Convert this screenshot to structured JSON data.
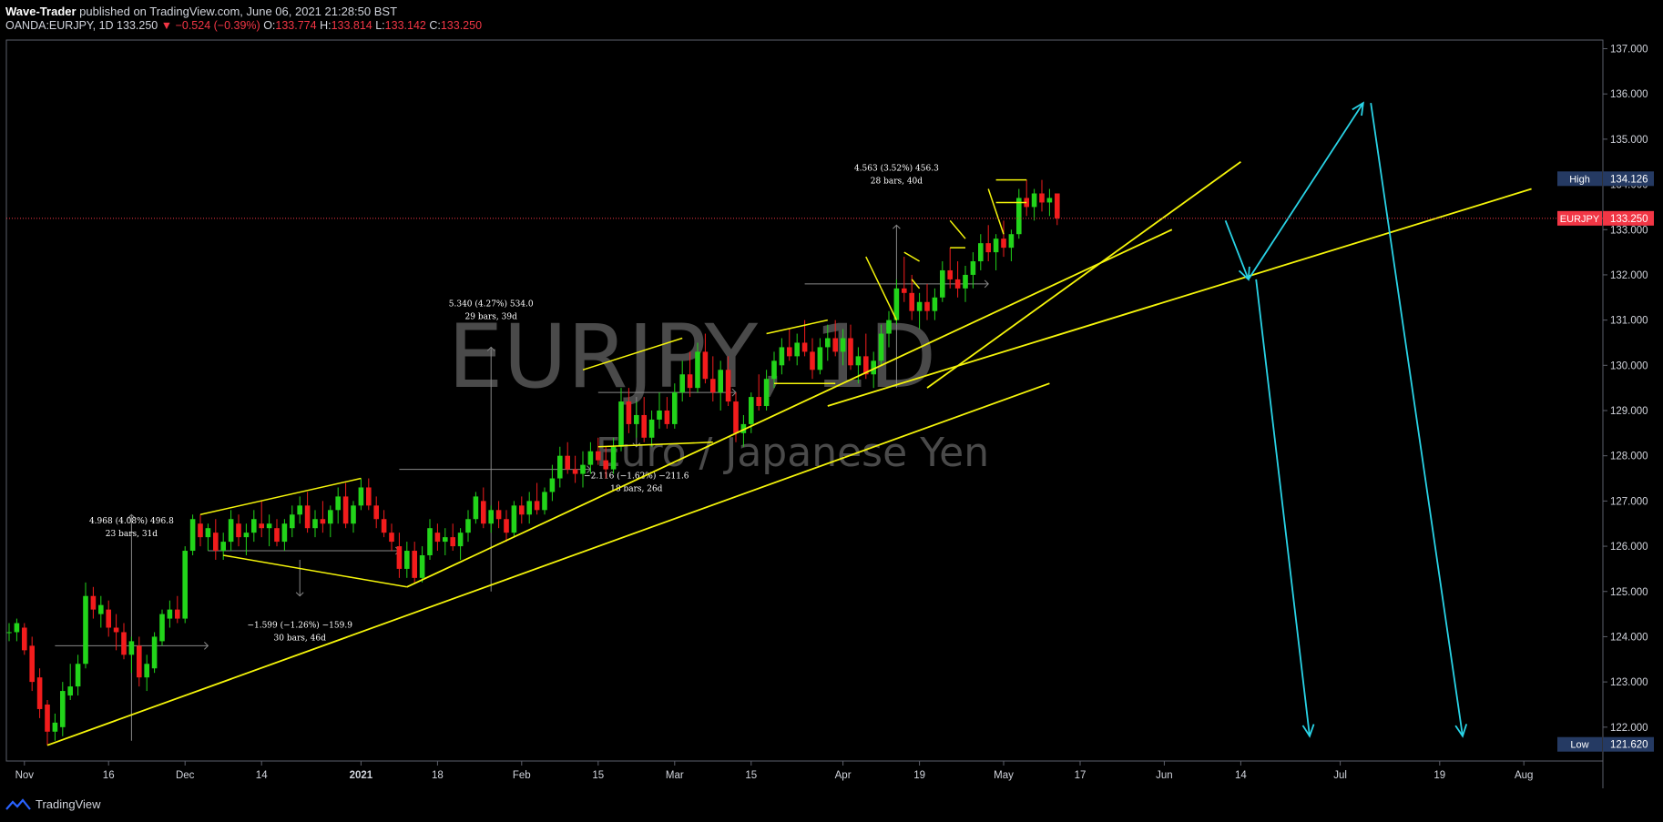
{
  "header": {
    "author": "Wave-Trader",
    "published": " published on TradingView.com, June 06, 2021 21:28:50 BST",
    "symbol": "OANDA:EURJPY, 1D",
    "last": "133.250",
    "change": "−0.524 (−0.39%)",
    "o_label": "O:",
    "o": "133.774",
    "h_label": "H:",
    "h": "133.814",
    "l_label": "L:",
    "l": "133.142",
    "c_label": "C:",
    "c": "133.250"
  },
  "footer": {
    "brand": "TradingView"
  },
  "watermark": {
    "title": "EURJPY, 1D",
    "subtitle": "Euro / Japanese Yen"
  },
  "colors": {
    "up": "#22d41a",
    "down": "#f21c1c",
    "trend": "#f5f50a",
    "projection": "#29d3e6",
    "high_badge": "#253a63",
    "price_badge": "#f23645"
  },
  "chart_data": {
    "type": "candlestick",
    "symbol": "EURJPY",
    "timeframe": "1D",
    "y_ticks": [
      122,
      123,
      124,
      125,
      126,
      127,
      128,
      129,
      130,
      131,
      132,
      133,
      134,
      135,
      136,
      137
    ],
    "y_tick_labels": [
      "122.000",
      "123.000",
      "124.000",
      "125.000",
      "126.000",
      "127.000",
      "128.000",
      "129.000",
      "130.000",
      "131.000",
      "132.000",
      "133.000",
      "134.000",
      "135.000",
      "136.000",
      "137.000"
    ],
    "ylim": [
      121.1,
      137.4
    ],
    "x_ticks": [
      {
        "label": "Nov",
        "bar": 2
      },
      {
        "label": "16",
        "bar": 13
      },
      {
        "label": "Dec",
        "bar": 23
      },
      {
        "label": "14",
        "bar": 33
      },
      {
        "label": "2021",
        "bar": 46
      },
      {
        "label": "18",
        "bar": 56
      },
      {
        "label": "Feb",
        "bar": 67
      },
      {
        "label": "15",
        "bar": 77
      },
      {
        "label": "Mar",
        "bar": 87
      },
      {
        "label": "15",
        "bar": 97
      },
      {
        "label": "Apr",
        "bar": 109
      },
      {
        "label": "19",
        "bar": 119
      },
      {
        "label": "May",
        "bar": 130
      },
      {
        "label": "17",
        "bar": 140
      },
      {
        "label": "Jun",
        "bar": 151
      },
      {
        "label": "14",
        "bar": 161
      },
      {
        "label": "Jul",
        "bar": 174
      },
      {
        "label": "19",
        "bar": 187
      },
      {
        "label": "Aug",
        "bar": 198
      }
    ],
    "high_marker": {
      "label": "High",
      "value": "134.126",
      "price": 134.126
    },
    "low_marker": {
      "label": "Low",
      "value": "121.620",
      "price": 121.62
    },
    "last_price": {
      "label": "EURJPY",
      "value": "133.250",
      "price": 133.25
    },
    "candles": [
      [
        124.1,
        124.3,
        123.9,
        124.1
      ],
      [
        124.1,
        124.4,
        123.9,
        124.3
      ],
      [
        124.2,
        124.3,
        123.6,
        123.7
      ],
      [
        123.8,
        124.0,
        122.8,
        123.0
      ],
      [
        123.1,
        123.3,
        122.2,
        122.4
      ],
      [
        122.5,
        122.6,
        121.6,
        121.9
      ],
      [
        121.9,
        122.3,
        121.7,
        122.1
      ],
      [
        122.0,
        123.0,
        121.8,
        122.8
      ],
      [
        122.7,
        123.4,
        122.6,
        122.9
      ],
      [
        122.9,
        123.6,
        122.7,
        123.4
      ],
      [
        123.4,
        125.2,
        123.3,
        124.9
      ],
      [
        124.9,
        125.1,
        124.4,
        124.6
      ],
      [
        124.5,
        124.9,
        124.2,
        124.7
      ],
      [
        124.6,
        124.8,
        124.0,
        124.2
      ],
      [
        124.2,
        124.5,
        123.7,
        124.1
      ],
      [
        124.1,
        124.3,
        123.5,
        123.6
      ],
      [
        123.6,
        124.0,
        123.2,
        123.9
      ],
      [
        123.8,
        124.0,
        122.9,
        123.1
      ],
      [
        123.1,
        123.6,
        122.8,
        123.4
      ],
      [
        123.3,
        124.1,
        123.2,
        124.0
      ],
      [
        123.9,
        124.6,
        123.8,
        124.5
      ],
      [
        124.4,
        124.8,
        124.2,
        124.6
      ],
      [
        124.6,
        124.9,
        124.3,
        124.4
      ],
      [
        124.4,
        126.0,
        124.3,
        125.9
      ],
      [
        125.9,
        126.7,
        125.8,
        126.6
      ],
      [
        126.5,
        126.7,
        126.0,
        126.2
      ],
      [
        126.2,
        126.5,
        125.9,
        126.4
      ],
      [
        126.3,
        126.6,
        125.7,
        125.9
      ],
      [
        125.9,
        126.3,
        125.7,
        126.1
      ],
      [
        126.1,
        126.8,
        125.9,
        126.6
      ],
      [
        126.5,
        126.7,
        126.0,
        126.2
      ],
      [
        126.2,
        126.5,
        125.8,
        126.3
      ],
      [
        126.3,
        126.8,
        126.1,
        126.6
      ],
      [
        126.5,
        127.0,
        126.2,
        126.4
      ],
      [
        126.4,
        126.7,
        126.0,
        126.5
      ],
      [
        126.4,
        126.6,
        126.0,
        126.1
      ],
      [
        126.1,
        126.6,
        125.9,
        126.5
      ],
      [
        126.4,
        126.9,
        126.2,
        126.7
      ],
      [
        126.7,
        127.1,
        126.5,
        126.9
      ],
      [
        126.9,
        127.2,
        126.3,
        126.4
      ],
      [
        126.4,
        126.8,
        126.2,
        126.6
      ],
      [
        126.6,
        127.0,
        126.3,
        126.5
      ],
      [
        126.5,
        126.9,
        126.2,
        126.8
      ],
      [
        126.8,
        127.3,
        126.5,
        127.1
      ],
      [
        127.1,
        127.4,
        126.4,
        126.5
      ],
      [
        126.5,
        127.0,
        126.3,
        126.9
      ],
      [
        126.9,
        127.5,
        126.8,
        127.3
      ],
      [
        127.3,
        127.5,
        126.8,
        126.9
      ],
      [
        126.9,
        127.1,
        126.4,
        126.6
      ],
      [
        126.6,
        126.8,
        126.2,
        126.3
      ],
      [
        126.3,
        126.5,
        125.9,
        126.1
      ],
      [
        126.0,
        126.3,
        125.3,
        125.5
      ],
      [
        125.5,
        126.1,
        125.3,
        125.9
      ],
      [
        125.9,
        126.1,
        125.2,
        125.3
      ],
      [
        125.3,
        126.0,
        125.2,
        125.8
      ],
      [
        125.8,
        126.6,
        125.7,
        126.4
      ],
      [
        126.3,
        126.5,
        125.9,
        126.1
      ],
      [
        126.1,
        126.4,
        125.8,
        126.2
      ],
      [
        126.2,
        126.5,
        125.9,
        126.0
      ],
      [
        126.0,
        126.4,
        125.7,
        126.3
      ],
      [
        126.3,
        126.8,
        126.1,
        126.6
      ],
      [
        126.6,
        127.2,
        126.5,
        127.1
      ],
      [
        127.0,
        127.3,
        126.4,
        126.5
      ],
      [
        126.5,
        126.9,
        126.3,
        126.8
      ],
      [
        126.8,
        127.0,
        126.4,
        126.6
      ],
      [
        126.6,
        126.8,
        126.1,
        126.3
      ],
      [
        126.3,
        127.0,
        126.2,
        126.9
      ],
      [
        126.9,
        127.1,
        126.5,
        126.7
      ],
      [
        126.7,
        127.2,
        126.5,
        127.0
      ],
      [
        127.0,
        127.4,
        126.7,
        126.8
      ],
      [
        126.8,
        127.3,
        126.7,
        127.2
      ],
      [
        127.2,
        127.8,
        127.0,
        127.5
      ],
      [
        127.5,
        128.2,
        127.3,
        128.0
      ],
      [
        128.0,
        128.3,
        127.6,
        127.7
      ],
      [
        127.7,
        128.0,
        127.4,
        127.6
      ],
      [
        127.6,
        128.1,
        127.3,
        127.8
      ],
      [
        127.8,
        128.3,
        127.6,
        128.1
      ],
      [
        128.1,
        128.4,
        127.8,
        127.9
      ],
      [
        127.9,
        128.2,
        127.5,
        127.7
      ],
      [
        127.7,
        128.4,
        127.6,
        128.2
      ],
      [
        128.2,
        129.5,
        128.1,
        129.2
      ],
      [
        129.2,
        129.5,
        128.5,
        128.7
      ],
      [
        128.7,
        129.2,
        128.4,
        128.9
      ],
      [
        128.9,
        129.3,
        128.3,
        128.4
      ],
      [
        128.4,
        129.0,
        128.2,
        128.8
      ],
      [
        128.8,
        129.4,
        128.6,
        129.0
      ],
      [
        129.0,
        129.3,
        128.6,
        128.7
      ],
      [
        128.7,
        129.6,
        128.6,
        129.4
      ],
      [
        129.4,
        130.1,
        129.2,
        129.8
      ],
      [
        129.8,
        130.3,
        129.3,
        129.5
      ],
      [
        129.5,
        130.5,
        129.4,
        130.3
      ],
      [
        130.3,
        130.7,
        129.6,
        129.7
      ],
      [
        129.7,
        130.2,
        129.2,
        129.4
      ],
      [
        129.4,
        130.1,
        129.0,
        129.9
      ],
      [
        129.9,
        130.2,
        129.1,
        129.2
      ],
      [
        129.2,
        129.4,
        128.3,
        128.5
      ],
      [
        128.5,
        128.9,
        128.2,
        128.7
      ],
      [
        128.7,
        129.4,
        128.5,
        129.3
      ],
      [
        129.3,
        129.8,
        129.0,
        129.1
      ],
      [
        129.1,
        129.9,
        129.0,
        129.7
      ],
      [
        129.7,
        130.3,
        129.5,
        130.1
      ],
      [
        130.0,
        130.6,
        129.8,
        130.4
      ],
      [
        130.4,
        130.8,
        130.1,
        130.2
      ],
      [
        130.2,
        130.7,
        130.0,
        130.5
      ],
      [
        130.5,
        131.0,
        130.2,
        130.3
      ],
      [
        130.3,
        130.6,
        129.7,
        129.9
      ],
      [
        129.9,
        130.6,
        129.8,
        130.4
      ],
      [
        130.4,
        130.9,
        130.1,
        130.6
      ],
      [
        130.6,
        131.0,
        130.2,
        130.3
      ],
      [
        130.3,
        130.8,
        130.0,
        130.6
      ],
      [
        130.6,
        130.9,
        129.9,
        130.0
      ],
      [
        130.0,
        130.4,
        129.6,
        130.2
      ],
      [
        130.2,
        130.7,
        129.7,
        129.8
      ],
      [
        129.8,
        130.3,
        129.5,
        130.1
      ],
      [
        130.1,
        130.9,
        130.0,
        130.7
      ],
      [
        130.7,
        131.2,
        130.4,
        131.0
      ],
      [
        131.0,
        131.9,
        130.9,
        131.7
      ],
      [
        131.7,
        132.4,
        131.4,
        131.6
      ],
      [
        131.6,
        132.0,
        131.0,
        131.2
      ],
      [
        131.2,
        131.6,
        130.8,
        131.4
      ],
      [
        131.4,
        131.8,
        131.0,
        131.2
      ],
      [
        131.2,
        131.7,
        131.0,
        131.5
      ],
      [
        131.5,
        132.3,
        131.4,
        132.1
      ],
      [
        132.1,
        132.6,
        131.7,
        131.9
      ],
      [
        131.9,
        132.3,
        131.5,
        131.7
      ],
      [
        131.7,
        132.2,
        131.4,
        132.0
      ],
      [
        132.0,
        132.5,
        131.7,
        132.3
      ],
      [
        132.3,
        132.9,
        132.1,
        132.7
      ],
      [
        132.7,
        133.1,
        132.3,
        132.5
      ],
      [
        132.5,
        132.9,
        132.1,
        132.8
      ],
      [
        132.8,
        133.2,
        132.4,
        132.6
      ],
      [
        132.6,
        133.0,
        132.3,
        132.9
      ],
      [
        132.9,
        133.9,
        132.8,
        133.7
      ],
      [
        133.7,
        134.1,
        133.3,
        133.5
      ],
      [
        133.5,
        133.9,
        133.2,
        133.8
      ],
      [
        133.8,
        134.1,
        133.4,
        133.6
      ],
      [
        133.6,
        133.9,
        133.3,
        133.7
      ],
      [
        133.8,
        133.8,
        133.1,
        133.25
      ]
    ],
    "measures": [
      {
        "line1": "4.968 (4.08%) 496.8",
        "line2": "23 bars, 31d"
      },
      {
        "line1": "−1.599 (−1.26%) −159.9",
        "line2": "30 bars, 46d"
      },
      {
        "line1": "5.340 (4.27%) 534.0",
        "line2": "29 bars, 39d"
      },
      {
        "line1": "−2.116 (−1.62%) −211.6",
        "line2": "18 bars, 26d"
      },
      {
        "line1": "4.563 (3.52%) 456.3",
        "line2": "28 bars, 40d"
      }
    ],
    "trendlines": [
      {
        "from": [
          5,
          121.6
        ],
        "to": [
          136,
          129.6
        ]
      },
      {
        "from": [
          52,
          125.1
        ],
        "to": [
          152,
          133.0
        ]
      },
      {
        "from": [
          120,
          129.5
        ],
        "to": [
          161,
          134.5
        ]
      },
      {
        "from": [
          107,
          129.1
        ],
        "to": [
          199,
          133.9
        ]
      }
    ],
    "projection_path": [
      [
        159,
        133.2
      ],
      [
        162,
        131.9
      ],
      [
        178,
        135.8
      ],
      [
        186,
        121.8
      ]
    ],
    "projection_path_2": [
      [
        178,
        135.8
      ],
      [
        205,
        121.8
      ]
    ]
  }
}
